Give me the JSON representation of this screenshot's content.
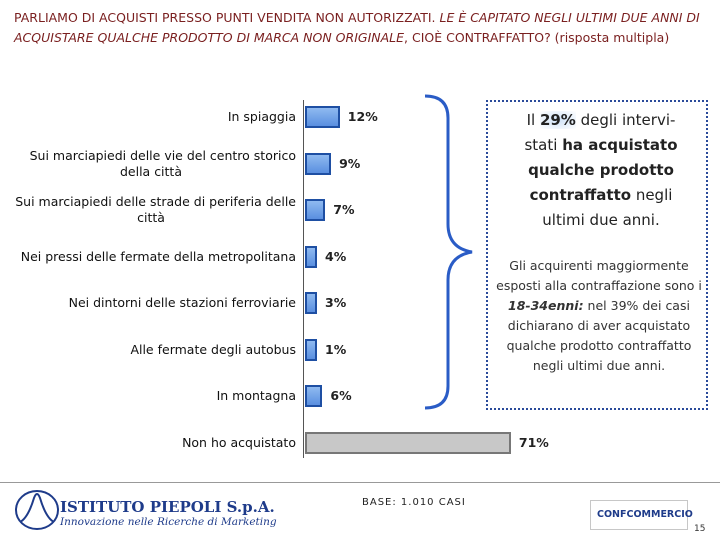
{
  "header": {
    "title_plain": "PARLIAMO DI ACQUISTI PRESSO PUNTI VENDITA NON AUTORIZZATI. ",
    "title_italic": "LE È CAPITATO NEGLI ULTIMI DUE ANNI DI ACQUISTARE QUALCHE PRODOTTO DI MARCA NON ORIGINALE",
    "title_tail": ", CIOÈ CONTRAFFATTO? (risposta multipla)"
  },
  "chart_data": {
    "type": "bar",
    "orientation": "horizontal",
    "title": "",
    "categories": [
      "In spiaggia",
      "Sui marciapiedi delle vie del centro storico della città",
      "Sui marciapiedi delle strade di periferia delle città",
      "Nei pressi delle fermate della metropolitana",
      "Nei dintorni delle stazioni ferroviarie",
      "Alle fermate degli autobus",
      "In montagna",
      "Non ho acquistato"
    ],
    "categories_lines": [
      [
        "In spiaggia"
      ],
      [
        "Sui marciapiedi delle vie del centro storico",
        "della città"
      ],
      [
        "Sui marciapiedi delle strade di periferia delle",
        "città"
      ],
      [
        "Nei pressi delle fermate della metropolitana"
      ],
      [
        "Nei dintorni delle stazioni ferroviarie"
      ],
      [
        "Alle fermate degli autobus"
      ],
      [
        "In montagna"
      ],
      [
        "Non ho acquistato"
      ]
    ],
    "values": [
      12,
      9,
      7,
      4,
      3,
      1,
      6,
      71
    ],
    "value_labels": [
      "12%",
      "9%",
      "7%",
      "4%",
      "3%",
      "1%",
      "6%",
      "71%"
    ],
    "highlight": [
      true,
      true,
      true,
      true,
      true,
      true,
      true,
      false
    ],
    "xlim": [
      0,
      100
    ],
    "unit": "%"
  },
  "callout": {
    "pre": "Il ",
    "pct": "29%",
    "post1": " degli intervi-",
    "line2a": "stati ",
    "line2b": "ha acquistato",
    "line3": "qualche prodotto",
    "line4": "contraffatto",
    "line4b": " negli",
    "line5": "ultimi due anni.",
    "note_pre": "Gli acquirenti maggiormente esposti alla contraffazione sono i ",
    "note_em": "18-34enni:",
    "note_post": " nel 39% dei casi dichiarano di aver acquistato qualche prodotto contraffatto negli ultimi due anni."
  },
  "footer": {
    "base": "BASE: 1.010 CASI",
    "logo_name": "ISTITUTO PIEPOLI S.p.A.",
    "logo_tagline": "Innovazione nelle Ricerche di Marketing",
    "partner": "CONFCOMMERCIO",
    "page": "15"
  },
  "colors": {
    "bar": "#6a9fe8",
    "bar_border": "#1e4fa3",
    "gray": "#c8c8c8",
    "title": "#7a1f1f"
  }
}
